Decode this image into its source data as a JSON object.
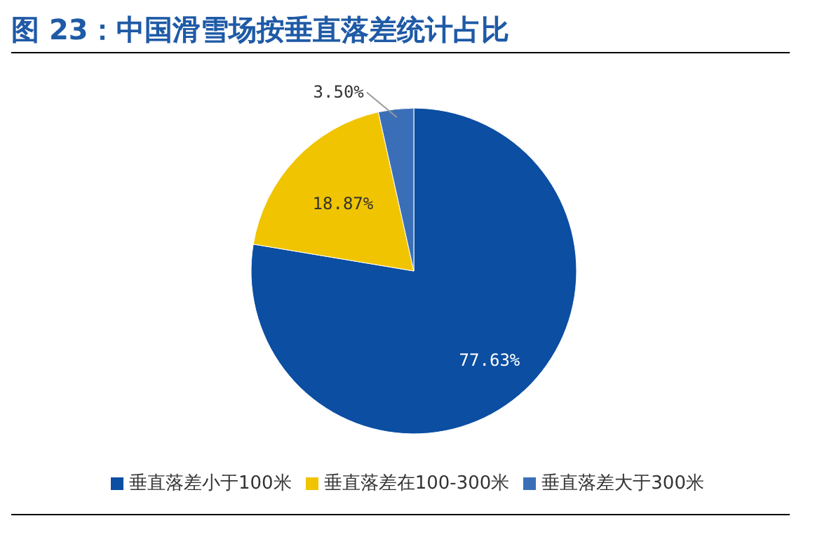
{
  "chart_data": {
    "type": "pie",
    "title": "图 23：中国滑雪场按垂直落差统计占比",
    "categories": [
      "垂直落差小于100米",
      "垂直落差在100-300米",
      "垂直落差大于300米"
    ],
    "values": [
      77.63,
      18.87,
      3.5
    ],
    "colors": [
      "#0b4ea2",
      "#f0c400",
      "#3a6fb8"
    ],
    "value_labels": [
      "77.63%",
      "18.87%",
      "3.50%"
    ],
    "legend": "bottom"
  }
}
